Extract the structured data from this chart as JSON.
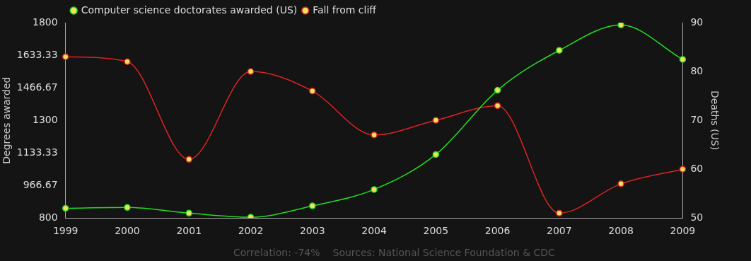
{
  "chart_data": {
    "type": "line",
    "xlabel": null,
    "ylabel": "Degrees awarded",
    "y2label": "Deaths (US)",
    "categories": [
      "1999",
      "2000",
      "2001",
      "2002",
      "2003",
      "2004",
      "2005",
      "2006",
      "2007",
      "2008",
      "2009"
    ],
    "series": [
      {
        "name": "Computer science doctorates awarded (US)",
        "color": "#22dd22",
        "values": [
          850,
          854,
          825,
          804,
          862,
          946,
          1125,
          1454,
          1658,
          1788,
          1612
        ]
      },
      {
        "name": "Fall from cliff",
        "color": "#dd2222",
        "axis": "y2",
        "values": [
          83,
          82,
          62,
          80,
          76,
          67,
          70,
          73,
          51,
          57,
          60
        ]
      }
    ],
    "ylim": [
      800,
      1800
    ],
    "yticks": [
      800,
      966.67,
      1133.33,
      1300,
      1466.67,
      1633.33,
      1800
    ],
    "y2lim": [
      50,
      90
    ],
    "y2ticks": [
      50,
      60,
      70,
      80,
      90
    ],
    "legend": "top left",
    "grid": false,
    "marker": "circle",
    "line_style": "solid",
    "annotations": [
      "Correlation: -74%",
      "Sources: National Science Foundation & CDC"
    ]
  }
}
